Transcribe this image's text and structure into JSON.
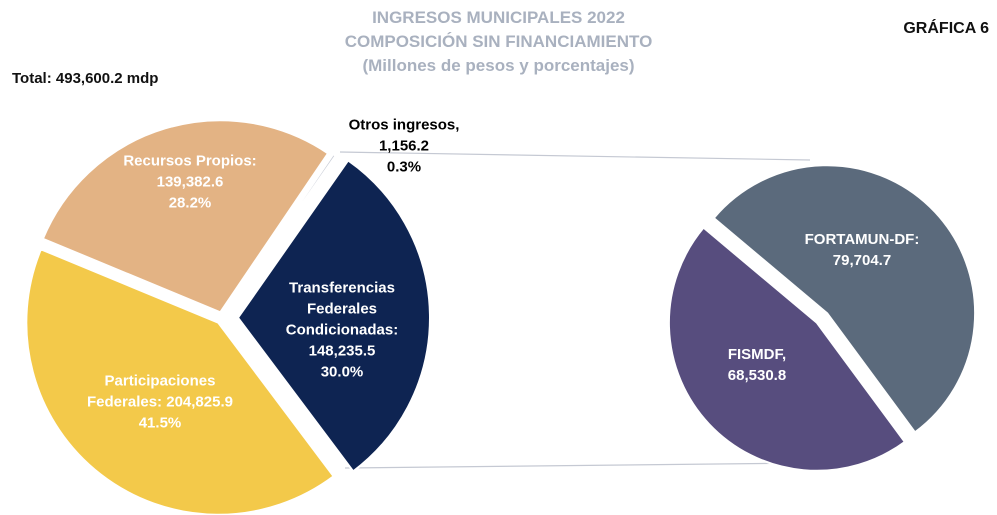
{
  "chart_data": [
    {
      "type": "pie",
      "title": "INGRESOS MUNICIPALES 2022",
      "subtitle": "COMPOSICIÓN SIN FINANCIAMIENTO",
      "unit_note": "(Millones de pesos y porcentajes)",
      "chart_number": "GRÁFICA 6",
      "total_label": "Total: 493,600.2 mdp",
      "categories": [
        "Transferencias Federales Condicionadas:",
        "Participaciones Federales:",
        "Recursos Propios:",
        "Otros ingresos,"
      ],
      "values": [
        148235.5,
        204825.9,
        139382.6,
        1156.2
      ],
      "value_labels": [
        "148,235.5",
        "204,825.9",
        "139,382.6",
        "1,156.2"
      ],
      "percentages": [
        30.0,
        41.5,
        28.2,
        0.3
      ],
      "percentage_labels": [
        "30.0%",
        "41.5%",
        "28.2%",
        "0.3%"
      ],
      "colors": [
        "#0e2452",
        "#f3c94a",
        "#e3b384",
        "#c8ccd6"
      ]
    },
    {
      "type": "pie",
      "categories": [
        "FORTAMUN-DF:",
        "FISMDF,"
      ],
      "values": [
        79704.7,
        68530.8
      ],
      "value_labels": [
        "79,704.7",
        "68,530.8"
      ],
      "colors": [
        "#5b6a7c",
        "#574d7e"
      ]
    }
  ]
}
